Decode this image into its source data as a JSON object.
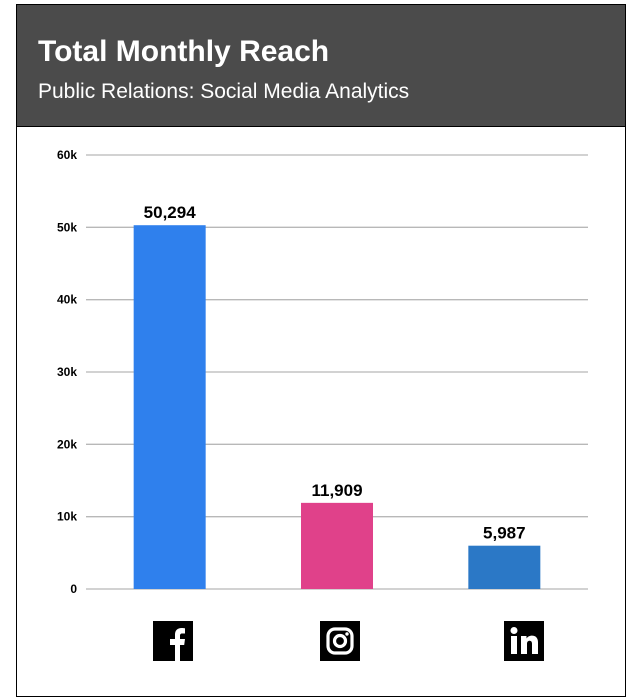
{
  "header": {
    "title": "Total Monthly Reach",
    "subtitle": "Public Relations: Social Media Analytics"
  },
  "chart_data": {
    "type": "bar",
    "title": "Total Monthly Reach",
    "subtitle": "Public Relations: Social Media Analytics",
    "categories": [
      "Facebook",
      "Instagram",
      "LinkedIn"
    ],
    "values": [
      50294,
      11909,
      5987
    ],
    "data_labels": [
      "50,294",
      "11,909",
      "5,987"
    ],
    "colors": [
      "#2f80ed",
      "#e0418a",
      "#2b78c6"
    ],
    "category_icons": [
      "facebook-icon",
      "instagram-icon",
      "linkedin-icon"
    ],
    "ylim": [
      0,
      60000
    ],
    "yticks": [
      0,
      10000,
      20000,
      30000,
      40000,
      50000,
      60000
    ],
    "ytick_labels": [
      "0",
      "10k",
      "20k",
      "30k",
      "40k",
      "50k",
      "60k"
    ],
    "grid": true,
    "legend": "none",
    "xlabel": "",
    "ylabel": ""
  }
}
